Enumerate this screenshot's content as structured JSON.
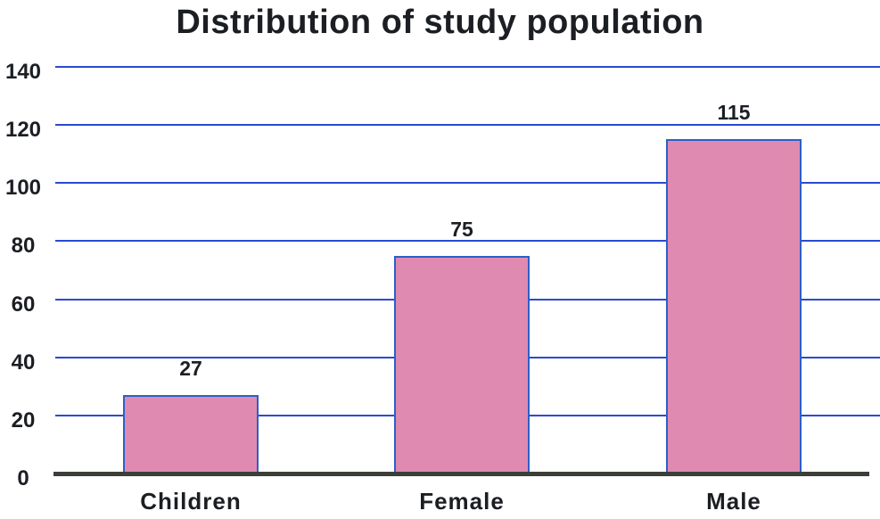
{
  "chart_data": {
    "type": "bar",
    "title": "Distribution of study population",
    "categories": [
      "Children",
      "Female",
      "Male"
    ],
    "values": [
      27,
      75,
      115
    ],
    "value_labels": [
      "27",
      "75",
      "115"
    ],
    "yticks": [
      0,
      20,
      40,
      60,
      80,
      100,
      120,
      140
    ],
    "ylim": [
      0,
      140
    ],
    "xlabel": "",
    "ylabel": "",
    "grid": "horizontal",
    "legend_position": "none",
    "colors": {
      "bar_fill": "#df8ab1",
      "bar_border": "#2d5fc8",
      "gridline": "#2a4ad1",
      "axis_line": "#3a3f39",
      "text": "#1b1e23"
    }
  }
}
